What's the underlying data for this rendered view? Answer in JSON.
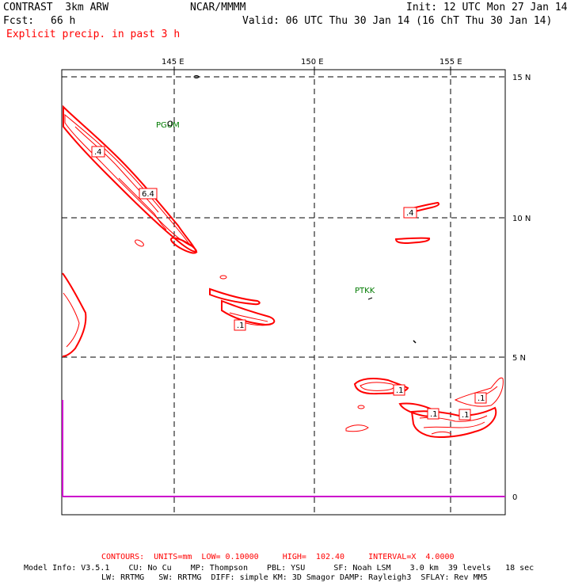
{
  "header": {
    "model": "CONTRAST  3km ARW",
    "center": "NCAR/MMMM",
    "init": "Init: 12 UTC Mon 27 Jan 14",
    "fcst_label": "Fcst:",
    "fcst_value": "66 h",
    "valid": "Valid: 06 UTC Thu 30 Jan 14 (16 ChT Thu 30 Jan 14)",
    "field": "Explicit precip. in past 3 h"
  },
  "map": {
    "lon_labels": [
      "145 E",
      "150 E",
      "155 E"
    ],
    "lat_labels": [
      "15 N",
      "10 N",
      "5 N",
      "0"
    ],
    "stations": [
      "PGUM",
      "PTKK"
    ],
    "contour_labels": [
      ".4",
      "6.4",
      ".1",
      ".4",
      ".1",
      ".1",
      ".1",
      ".1"
    ],
    "colors": {
      "contour": "#ff0000",
      "grid": "#000000",
      "station": "#007a00",
      "equator": "#cc00cc"
    }
  },
  "footer": {
    "contours": "CONTOURS:  UNITS=mm  LOW= 0.10000     HIGH=  102.40     INTERVAL=X  4.0000",
    "info1": "Model Info: V3.5.1    CU: No Cu    MP: Thompson    PBL: YSU      SF: Noah LSM    3.0 km  39 levels   18 sec",
    "info2": "LW: RRTMG   SW: RRTMG  DIFF: simple KM: 3D Smagor DAMP: Rayleigh3  SFLAY: Rev MM5"
  }
}
